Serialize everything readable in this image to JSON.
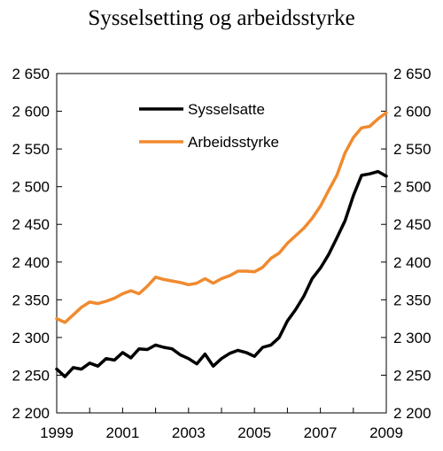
{
  "chart_data": {
    "type": "line",
    "title": "Sysselsetting og arbeidsstyrke",
    "xlabel": "",
    "ylabel": "",
    "xlim": [
      1999,
      2009
    ],
    "ylim": [
      2200,
      2650
    ],
    "yticks": [
      2200,
      2250,
      2300,
      2350,
      2400,
      2450,
      2500,
      2550,
      2600,
      2650
    ],
    "ytick_labels": [
      "2 200",
      "2 250",
      "2 300",
      "2 350",
      "2 400",
      "2 450",
      "2 500",
      "2 550",
      "2 600",
      "2 650"
    ],
    "xticks": [
      1999,
      2001,
      2003,
      2005,
      2007,
      2009
    ],
    "xtick_labels": [
      "1999",
      "2001",
      "2003",
      "2005",
      "2007",
      "2009"
    ],
    "grid": false,
    "legend_position": "upper-left-inside",
    "series": [
      {
        "name": "Sysselsatte",
        "color": "#000000",
        "x": [
          1999.0,
          1999.25,
          1999.5,
          1999.75,
          2000.0,
          2000.25,
          2000.5,
          2000.75,
          2001.0,
          2001.25,
          2001.5,
          2001.75,
          2002.0,
          2002.25,
          2002.5,
          2002.75,
          2003.0,
          2003.25,
          2003.5,
          2003.75,
          2004.0,
          2004.25,
          2004.5,
          2004.75,
          2005.0,
          2005.25,
          2005.5,
          2005.75,
          2006.0,
          2006.25,
          2006.5,
          2006.75,
          2007.0,
          2007.25,
          2007.5,
          2007.75,
          2008.0,
          2008.25,
          2008.5,
          2008.75,
          2009.0
        ],
        "values": [
          2258,
          2248,
          2260,
          2258,
          2266,
          2262,
          2272,
          2270,
          2280,
          2273,
          2285,
          2284,
          2290,
          2287,
          2285,
          2277,
          2272,
          2265,
          2278,
          2262,
          2272,
          2279,
          2283,
          2280,
          2275,
          2287,
          2290,
          2300,
          2322,
          2337,
          2355,
          2378,
          2392,
          2410,
          2432,
          2455,
          2488,
          2515,
          2517,
          2520,
          2514
        ]
      },
      {
        "name": "Arbeidsstyrke",
        "color": "#f08a2e",
        "x": [
          1999.0,
          1999.25,
          1999.5,
          1999.75,
          2000.0,
          2000.25,
          2000.5,
          2000.75,
          2001.0,
          2001.25,
          2001.5,
          2001.75,
          2002.0,
          2002.25,
          2002.5,
          2002.75,
          2003.0,
          2003.25,
          2003.5,
          2003.75,
          2004.0,
          2004.25,
          2004.5,
          2004.75,
          2005.0,
          2005.25,
          2005.5,
          2005.75,
          2006.0,
          2006.25,
          2006.5,
          2006.75,
          2007.0,
          2007.25,
          2007.5,
          2007.75,
          2008.0,
          2008.25,
          2008.5,
          2008.75,
          2009.0
        ],
        "values": [
          2325,
          2320,
          2330,
          2340,
          2347,
          2345,
          2348,
          2352,
          2358,
          2362,
          2358,
          2368,
          2380,
          2377,
          2375,
          2373,
          2370,
          2372,
          2378,
          2372,
          2378,
          2382,
          2388,
          2388,
          2387,
          2393,
          2405,
          2412,
          2425,
          2435,
          2445,
          2458,
          2474,
          2495,
          2515,
          2545,
          2565,
          2578,
          2580,
          2590,
          2598
        ]
      }
    ]
  }
}
